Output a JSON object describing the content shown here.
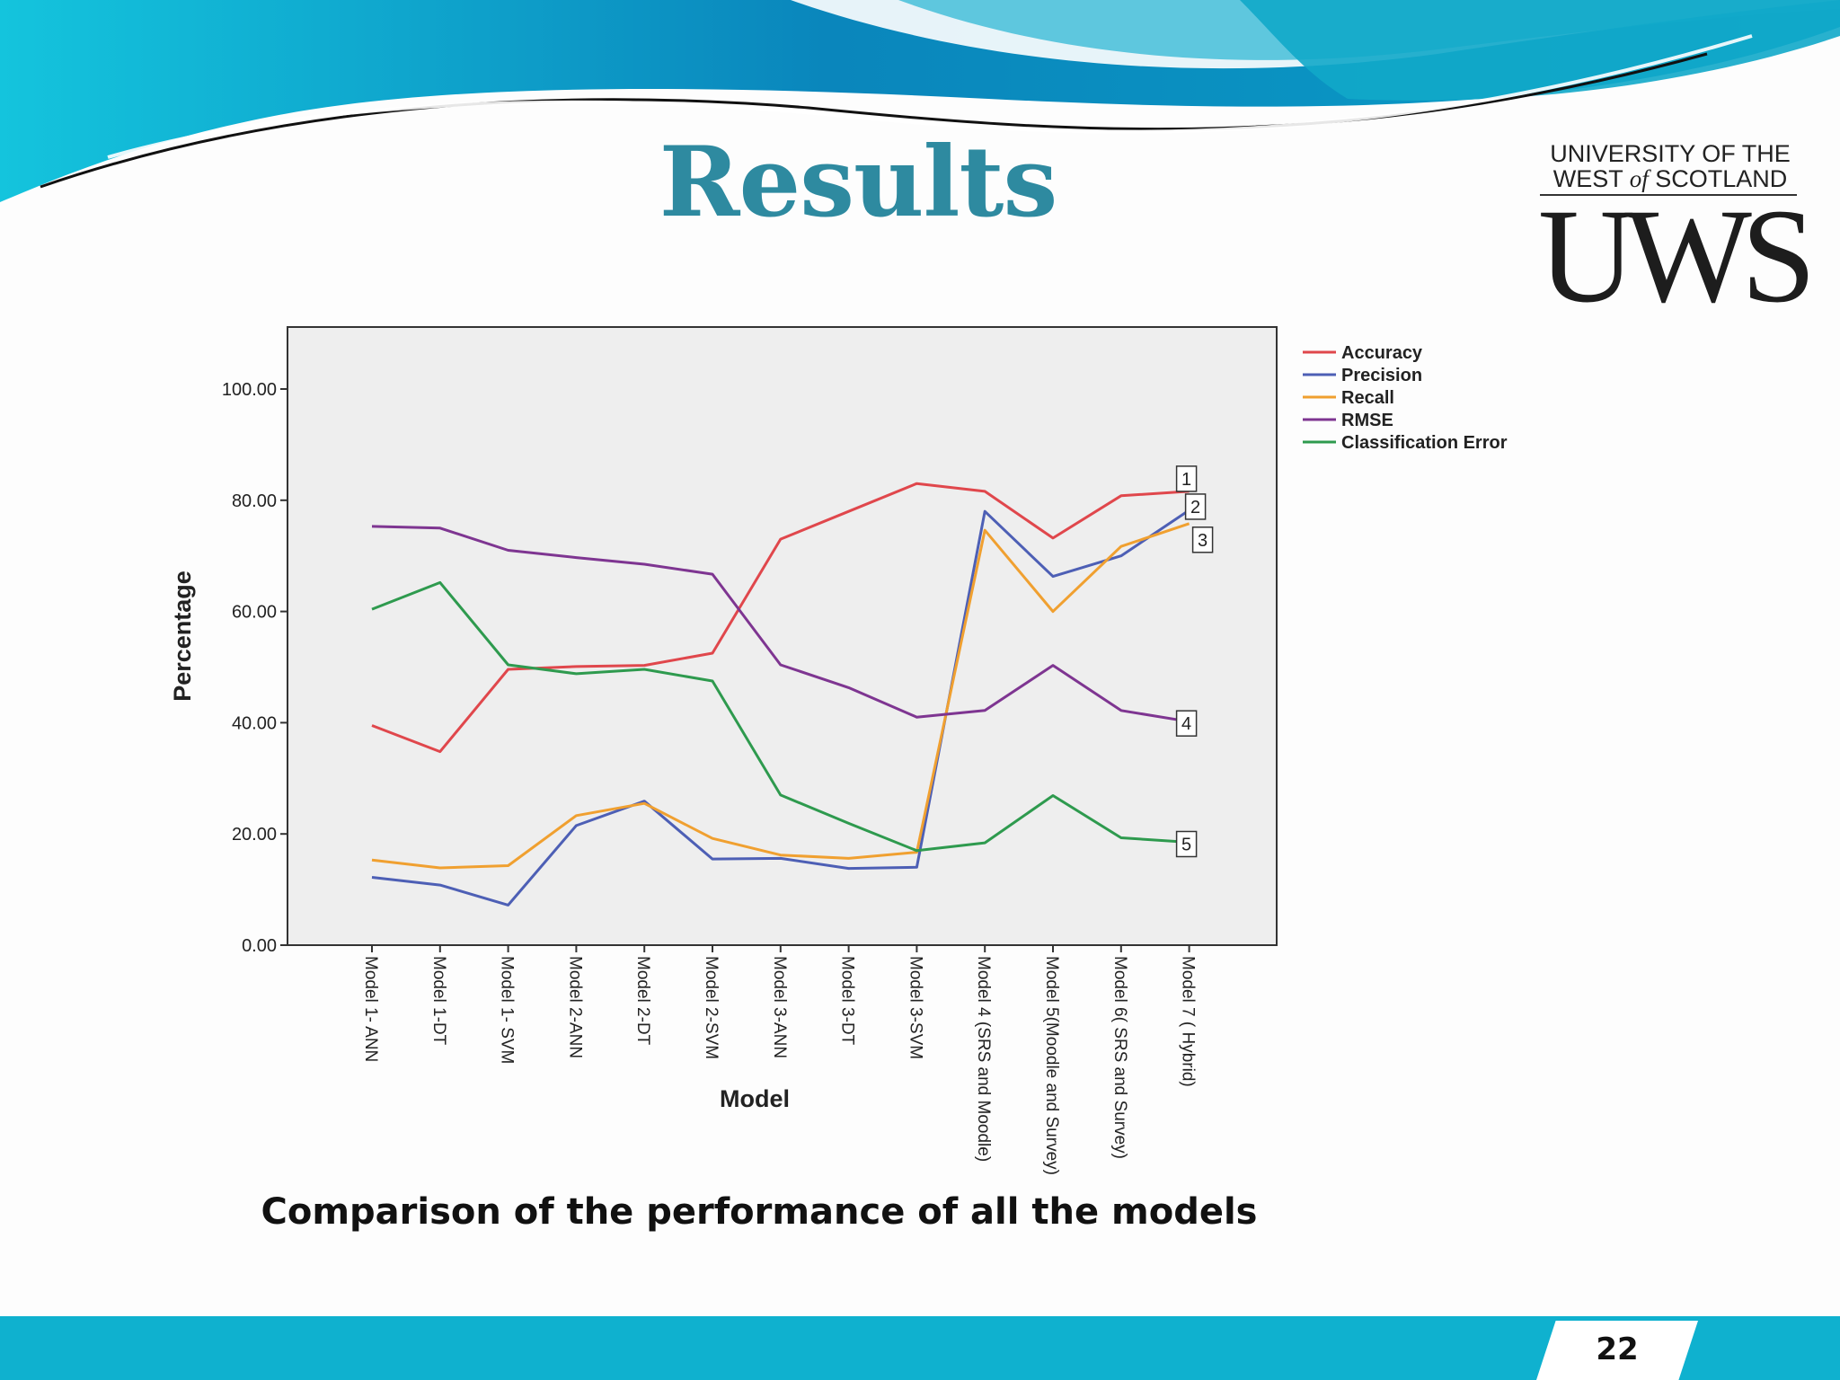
{
  "slide": {
    "title": "Results",
    "caption": "Comparison of the performance of all the models",
    "page_number": "22",
    "logo": {
      "line1": "UNIVERSITY OF THE",
      "line2_pre": "WEST ",
      "line2_it": "of",
      "line2_post": " SCOTLAND",
      "mark": "UWS"
    },
    "colors": {
      "title": "#2e8aa0",
      "band": "#0fb1cf",
      "wave_dark": "#0a7fb8",
      "wave_light": "#19c8df"
    }
  },
  "chart_data": {
    "type": "line",
    "xlabel": "Model",
    "ylabel": "Percentage",
    "ylim": [
      0,
      100
    ],
    "yticks": [
      "0.00",
      "20.00",
      "40.00",
      "60.00",
      "80.00",
      "100.00"
    ],
    "grid": false,
    "legend_position": "right",
    "categories": [
      "Model 1- ANN",
      "Model 1-DT",
      "Model 1- SVM",
      "Model 2-ANN",
      "Model 2-DT",
      "Model 2-SVM",
      "Model 3-ANN",
      "Model 3-DT",
      "Model 3-SVM",
      "Model 4 (SRS and Moodle)",
      "Model 5(Moodle and Survey)",
      "Model 6( SRS and Survey)",
      "Model 7 ( Hybrid)"
    ],
    "series": [
      {
        "name": "Accuracy",
        "color": "#e0474c",
        "end_label": "1",
        "values": [
          39.5,
          34.8,
          49.6,
          50.1,
          50.3,
          52.5,
          73.0,
          78.0,
          83.0,
          81.6,
          73.2,
          80.8,
          81.6
        ]
      },
      {
        "name": "Precision",
        "color": "#4d5fb5",
        "end_label": "2",
        "values": [
          12.2,
          10.8,
          7.2,
          21.5,
          25.9,
          15.5,
          15.6,
          13.8,
          14.0,
          78.0,
          66.3,
          70.0,
          78.2
        ]
      },
      {
        "name": "Recall",
        "color": "#f0a030",
        "end_label": "3",
        "values": [
          15.3,
          13.9,
          14.3,
          23.3,
          25.5,
          19.2,
          16.2,
          15.6,
          16.7,
          74.6,
          60.0,
          71.7,
          75.8
        ]
      },
      {
        "name": "RMSE",
        "color": "#7e3591",
        "end_label": "4",
        "values": [
          75.3,
          75.0,
          71.0,
          69.7,
          68.5,
          66.7,
          50.4,
          46.3,
          41.0,
          42.2,
          50.3,
          42.2,
          40.2
        ]
      },
      {
        "name": "Classification Error",
        "color": "#2e9a4e",
        "end_label": "5",
        "values": [
          60.4,
          65.2,
          50.4,
          48.8,
          49.6,
          47.5,
          27.0,
          21.9,
          17.0,
          18.4,
          26.9,
          19.3,
          18.5
        ]
      }
    ]
  }
}
